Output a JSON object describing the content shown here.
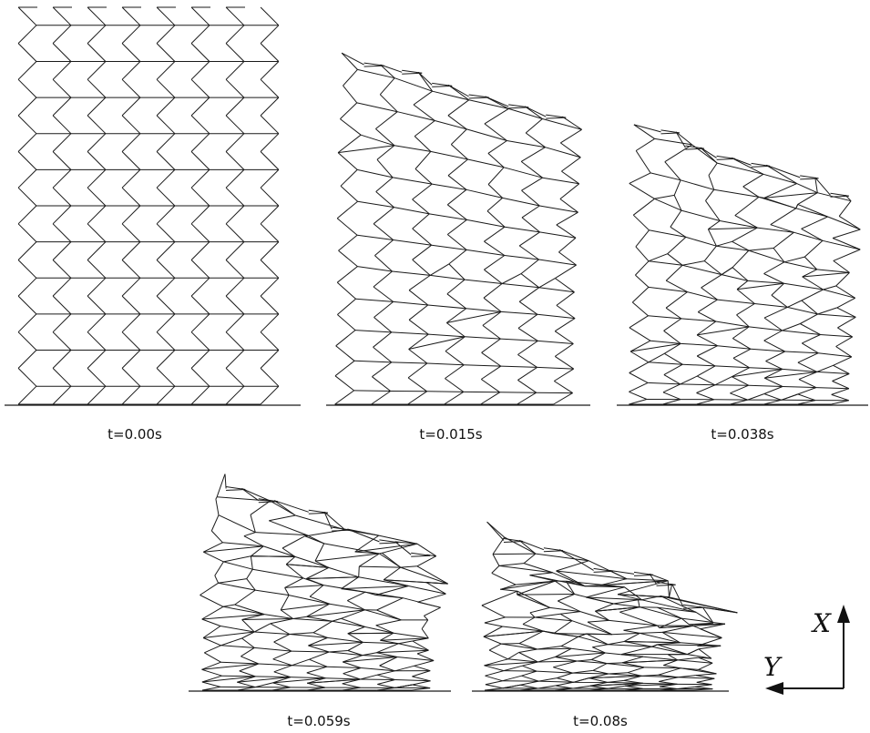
{
  "figure": {
    "panels": [
      {
        "id": "p0",
        "caption": "t=0.00s"
      },
      {
        "id": "p1",
        "caption": "t=0.015s"
      },
      {
        "id": "p2",
        "caption": "t=0.038s"
      },
      {
        "id": "p3",
        "caption": "t=0.059s"
      },
      {
        "id": "p4",
        "caption": "t=0.08s"
      }
    ],
    "axes": {
      "x_label": "X",
      "y_label": "Y"
    },
    "colors": {
      "line": "#1a1a1a",
      "background": "#ffffff"
    }
  }
}
